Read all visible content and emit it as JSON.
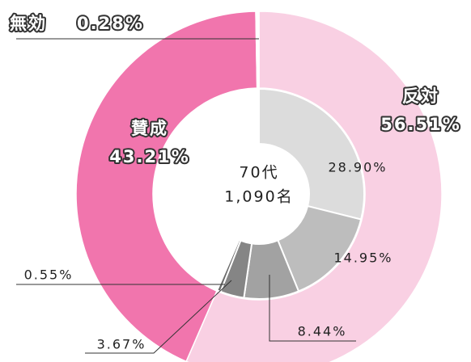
{
  "chart_data": {
    "type": "donut",
    "center_text": [
      "70代",
      "1,090名"
    ],
    "categories": [
      "反対",
      "賛成",
      "無効"
    ],
    "values": [
      56.51,
      43.21,
      0.28
    ],
    "value_labels": [
      "56.51%",
      "43.21%",
      "0.28%"
    ],
    "colors": [
      "#f9d0e3",
      "#f175ad",
      "#ffffff"
    ],
    "inner": {
      "values": [
        28.9,
        14.95,
        8.44,
        3.67,
        0.55
      ],
      "value_labels": [
        "28.90%",
        "14.95%",
        "8.44%",
        "3.67%",
        "0.55%"
      ],
      "colors": [
        "#dcdcdc",
        "#bdbdbd",
        "#a2a2a2",
        "#858585",
        "#6a6a6a"
      ]
    }
  }
}
